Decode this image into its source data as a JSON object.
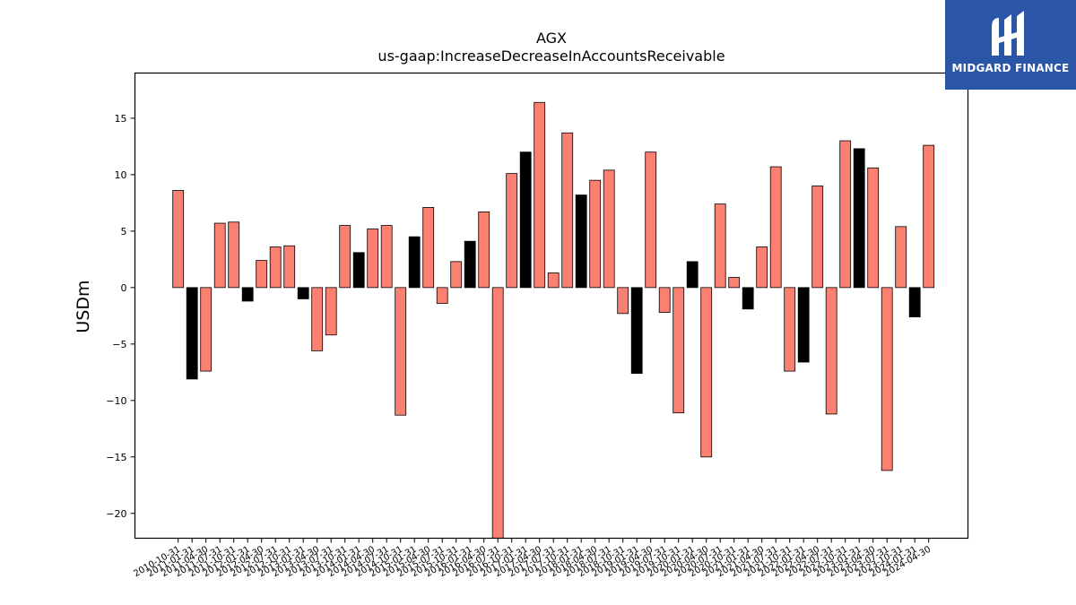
{
  "chart_data": {
    "type": "bar",
    "title": "AGX",
    "subtitle": "us-gaap:IncreaseDecreaseInAccountsReceivable",
    "ylabel": "USDm",
    "xlabel": "",
    "ylim": [
      -22.2,
      19.0
    ],
    "yticks": [
      15,
      10,
      5,
      0,
      -5,
      -10,
      -15,
      -20
    ],
    "grid": false,
    "legend": "none",
    "categories": [
      "2010-10-31",
      "2011-01-31",
      "2011-04-30",
      "2011-07-31",
      "2011-10-31",
      "2012-01-31",
      "2012-04-30",
      "2012-07-31",
      "2012-10-31",
      "2013-01-31",
      "2013-04-30",
      "2013-07-31",
      "2013-10-31",
      "2014-01-31",
      "2014-04-30",
      "2014-07-31",
      "2014-10-31",
      "2015-01-31",
      "2015-04-30",
      "2015-07-31",
      "2015-10-31",
      "2016-01-31",
      "2016-04-30",
      "2016-07-31",
      "2016-10-31",
      "2017-01-31",
      "2017-04-30",
      "2017-07-31",
      "2017-10-31",
      "2018-01-31",
      "2018-04-30",
      "2018-07-31",
      "2018-10-31",
      "2019-01-31",
      "2019-04-30",
      "2019-07-31",
      "2019-10-31",
      "2020-01-31",
      "2020-04-30",
      "2020-07-31",
      "2020-10-31",
      "2021-01-31",
      "2021-04-30",
      "2021-07-31",
      "2021-10-31",
      "2022-01-31",
      "2022-04-30",
      "2022-07-31",
      "2022-10-31",
      "2023-01-31",
      "2023-04-30",
      "2023-07-31",
      "2023-10-31",
      "2024-01-31",
      "2024-04-30"
    ],
    "values": [
      8.6,
      -8.1,
      -7.4,
      5.7,
      5.8,
      -1.2,
      2.4,
      3.6,
      3.7,
      -1.0,
      -5.6,
      -4.2,
      5.5,
      3.1,
      5.2,
      5.5,
      -11.3,
      4.5,
      7.1,
      -1.4,
      2.3,
      4.1,
      6.7,
      -22.2,
      10.1,
      12.0,
      16.4,
      1.3,
      13.7,
      8.2,
      9.5,
      10.4,
      -2.3,
      -7.6,
      12.0,
      -2.2,
      -11.1,
      2.3,
      -15.0,
      7.4,
      0.9,
      -1.9,
      3.6,
      10.7,
      -7.4,
      -6.6,
      9.0,
      -11.2,
      13.0,
      12.3,
      10.6,
      -16.2,
      5.4,
      -2.6,
      12.6
    ],
    "bar_colors": [
      "#fa8072",
      "#000000",
      "#fa8072",
      "#fa8072",
      "#fa8072",
      "#000000",
      "#fa8072",
      "#fa8072",
      "#fa8072",
      "#000000",
      "#fa8072",
      "#fa8072",
      "#fa8072",
      "#000000",
      "#fa8072",
      "#fa8072",
      "#fa8072",
      "#000000",
      "#fa8072",
      "#fa8072",
      "#fa8072",
      "#000000",
      "#fa8072",
      "#fa8072",
      "#fa8072",
      "#000000",
      "#fa8072",
      "#fa8072",
      "#fa8072",
      "#000000",
      "#fa8072",
      "#fa8072",
      "#fa8072",
      "#000000",
      "#fa8072",
      "#fa8072",
      "#fa8072",
      "#000000",
      "#fa8072",
      "#fa8072",
      "#fa8072",
      "#000000",
      "#fa8072",
      "#fa8072",
      "#fa8072",
      "#000000",
      "#fa8072",
      "#fa8072",
      "#fa8072",
      "#000000",
      "#fa8072",
      "#fa8072",
      "#fa8072",
      "#000000",
      "#fa8072"
    ]
  },
  "logo": {
    "text": "MIDGARD FINANCE",
    "background": "#2b56a8"
  }
}
